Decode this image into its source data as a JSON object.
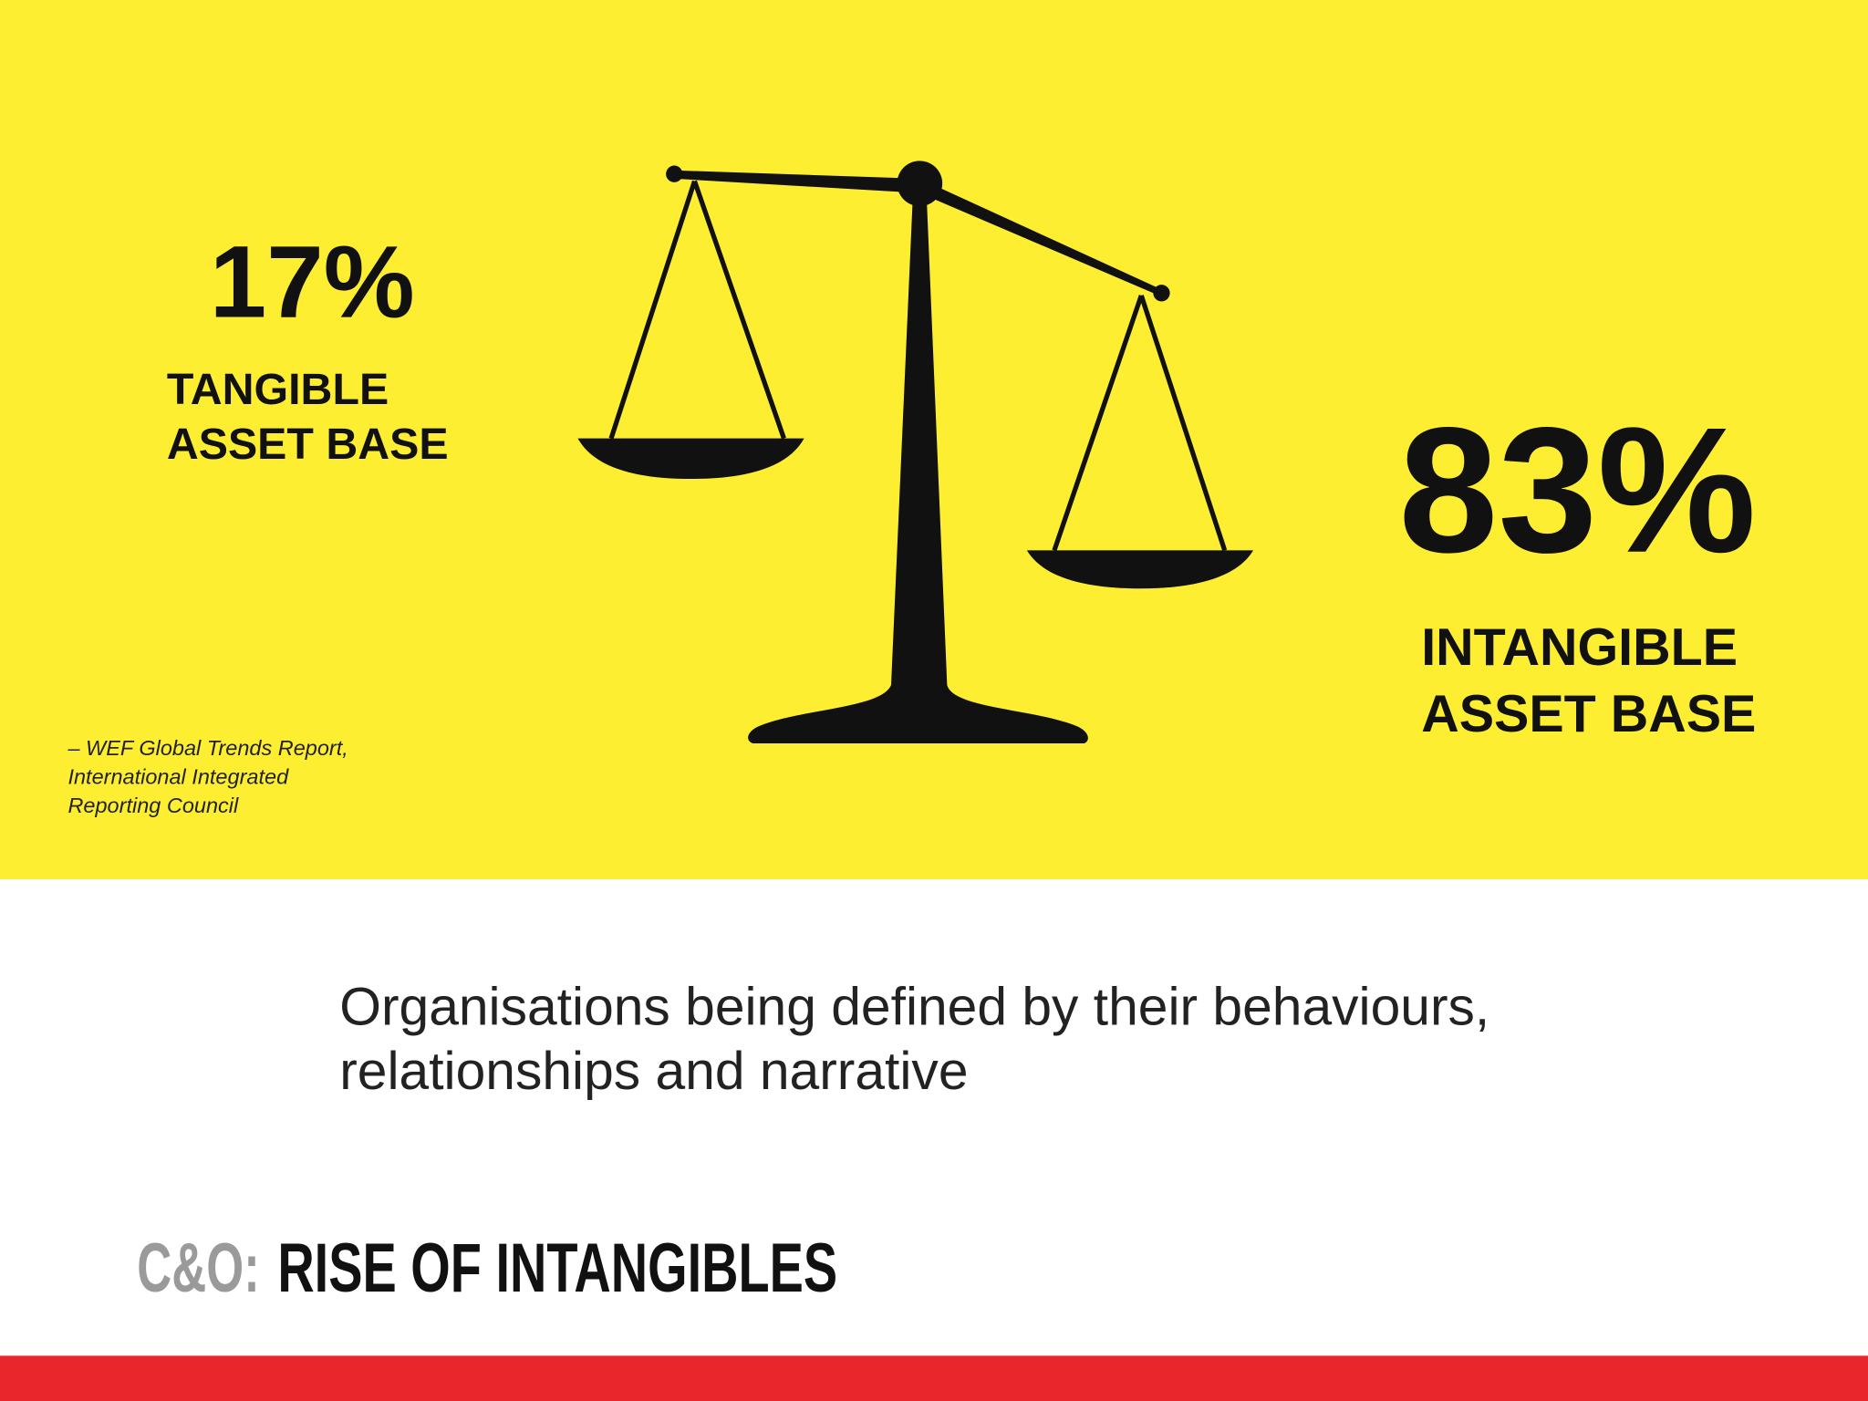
{
  "stats": [
    {
      "value": "17%",
      "label": [
        "TANGIBLE",
        "ASSET BASE"
      ]
    },
    {
      "value": "83%",
      "label": [
        "INTANGIBLE",
        "ASSET BASE"
      ]
    }
  ],
  "source": [
    "– WEF Global Trends Report,",
    "International Integrated",
    "Reporting Council"
  ],
  "statement": [
    "Organisations being defined by their behaviours,",
    "relationships and narrative"
  ],
  "footer": {
    "prefix": "C&O:",
    "title": "RISE OF INTANGIBLES"
  }
}
